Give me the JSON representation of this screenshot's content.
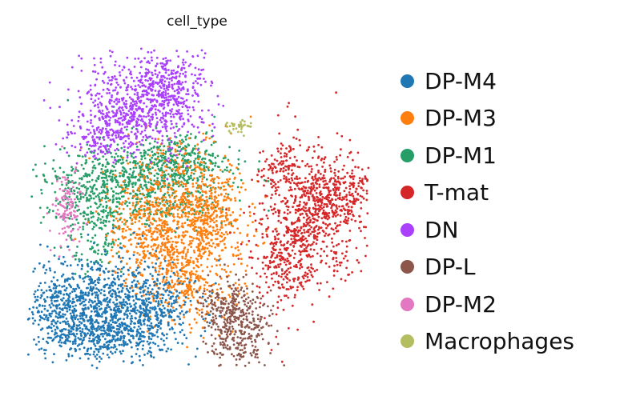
{
  "chart_data": {
    "type": "scatter",
    "title": "cell_type",
    "xlabel": "",
    "ylabel": "",
    "grid": false,
    "legend_position": "right",
    "point_size_approx": "small",
    "series": [
      {
        "name": "DP-M4",
        "color": "#1f77b4",
        "approx_count": 2600,
        "description": "lower-left cluster"
      },
      {
        "name": "DP-M3",
        "color": "#ff7f0e",
        "approx_count": 2200,
        "description": "central cluster"
      },
      {
        "name": "DP-M1",
        "color": "#279e68",
        "approx_count": 1700,
        "description": "upper-central band"
      },
      {
        "name": "T-mat",
        "color": "#d62728",
        "approx_count": 1700,
        "description": "right cluster"
      },
      {
        "name": "DN",
        "color": "#aa40fc",
        "approx_count": 1500,
        "description": "top cluster"
      },
      {
        "name": "DP-L",
        "color": "#8c564b",
        "approx_count": 550,
        "description": "bottom-center cluster"
      },
      {
        "name": "DP-M2",
        "color": "#e377c2",
        "approx_count": 150,
        "description": "left edge"
      },
      {
        "name": "Macrophages",
        "color": "#b5bd61",
        "approx_count": 35,
        "description": "small isolated cluster top"
      }
    ]
  }
}
